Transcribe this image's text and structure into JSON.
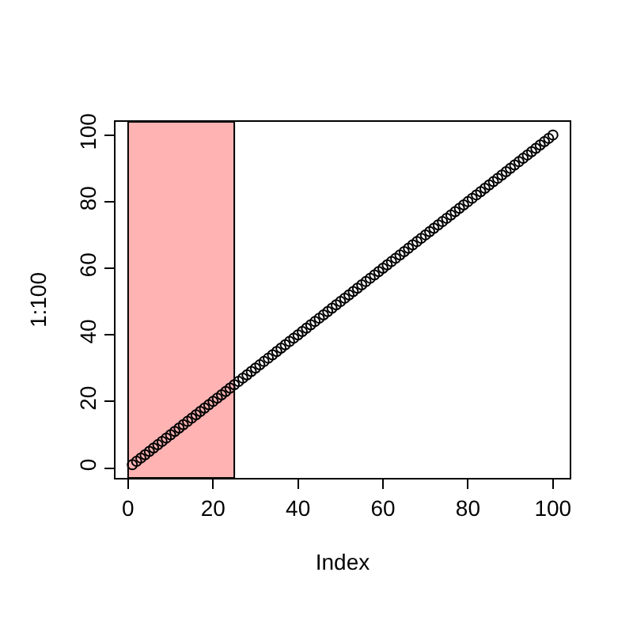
{
  "chart_data": {
    "type": "scatter",
    "xlabel": "Index",
    "ylabel": "1:100",
    "x": [
      1,
      2,
      3,
      4,
      5,
      6,
      7,
      8,
      9,
      10,
      11,
      12,
      13,
      14,
      15,
      16,
      17,
      18,
      19,
      20,
      21,
      22,
      23,
      24,
      25,
      26,
      27,
      28,
      29,
      30,
      31,
      32,
      33,
      34,
      35,
      36,
      37,
      38,
      39,
      40,
      41,
      42,
      43,
      44,
      45,
      46,
      47,
      48,
      49,
      50,
      51,
      52,
      53,
      54,
      55,
      56,
      57,
      58,
      59,
      60,
      61,
      62,
      63,
      64,
      65,
      66,
      67,
      68,
      69,
      70,
      71,
      72,
      73,
      74,
      75,
      76,
      77,
      78,
      79,
      80,
      81,
      82,
      83,
      84,
      85,
      86,
      87,
      88,
      89,
      90,
      91,
      92,
      93,
      94,
      95,
      96,
      97,
      98,
      99,
      100
    ],
    "series": [
      {
        "color": "#000000",
        "values": [
          1,
          2,
          3,
          4,
          5,
          6,
          7,
          8,
          9,
          10,
          11,
          12,
          13,
          14,
          15,
          16,
          17,
          18,
          19,
          20,
          21,
          22,
          23,
          24,
          25,
          26,
          27,
          28,
          29,
          30,
          31,
          32,
          33,
          34,
          35,
          36,
          37,
          38,
          39,
          40,
          41,
          42,
          43,
          44,
          45,
          46,
          47,
          48,
          49,
          50,
          51,
          52,
          53,
          54,
          55,
          56,
          57,
          58,
          59,
          60,
          61,
          62,
          63,
          64,
          65,
          66,
          67,
          68,
          69,
          70,
          71,
          72,
          73,
          74,
          75,
          76,
          77,
          78,
          79,
          80,
          81,
          82,
          83,
          84,
          85,
          86,
          87,
          88,
          89,
          90,
          91,
          92,
          93,
          94,
          95,
          96,
          97,
          98,
          99,
          100
        ]
      }
    ],
    "xlim": [
      -2.96,
      103.96
    ],
    "ylim": [
      -2.96,
      103.96
    ],
    "xticks": [
      0,
      20,
      40,
      60,
      80,
      100
    ],
    "yticks": [
      0,
      20,
      40,
      60,
      80,
      100
    ],
    "bands": [
      {
        "axis": "x",
        "from": 0,
        "to": 25,
        "color": "#ffb3b3"
      }
    ],
    "marker": "circle",
    "grid": false,
    "legend": false
  }
}
